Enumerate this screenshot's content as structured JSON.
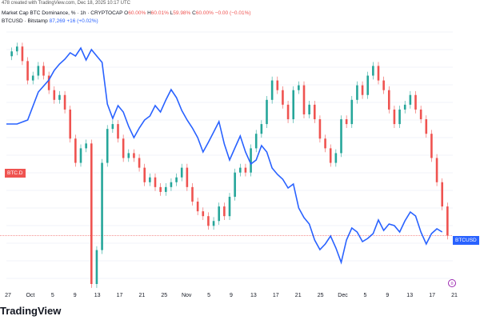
{
  "header": {
    "meta": "478 created with TradingView.com, Dec 18, 2025 10:17 UTC",
    "series1_name": "Market Cap BTC Dominance, % · 1h · CRYPTOCAP",
    "series1_o": "O",
    "series1_o_val": "60.00%",
    "series1_h": "H",
    "series1_h_val": "60.01%",
    "series1_l": "L",
    "series1_l_val": "59.98%",
    "series1_c": "C",
    "series1_c_val": "60.00%",
    "series1_change": "−0.00 (−0.01%)",
    "series2_name": "BTCUSD · Bitstamp",
    "series2_price": "87,269",
    "series2_change": "+16 (+0.02%)"
  },
  "tags": {
    "btcd": "BTC.D",
    "btcusd": "BTCUSD"
  },
  "logo": "TradingView",
  "event_icon_glyph": "¤",
  "colors": {
    "btcusd_line": "#2962ff",
    "candle_up": "#26a69a",
    "candle_down": "#ef5350",
    "price_line": "#ef5350",
    "tag_red": "#ef5350",
    "tag_blue": "#2962ff",
    "event_icon": "#9c27b0"
  },
  "chart_data": {
    "type": "line",
    "x_ticks": [
      "27",
      "Oct",
      "5",
      "9",
      "13",
      "17",
      "21",
      "25",
      "Nov",
      "5",
      "9",
      "13",
      "17",
      "21",
      "25",
      "Dec",
      "5",
      "9",
      "13",
      "17",
      "21"
    ],
    "x_range": [
      0,
      84
    ],
    "series": [
      {
        "name": "BTCUSD",
        "style": "line",
        "values": [
          [
            0,
            155
          ],
          [
            2,
            155
          ],
          [
            4,
            150
          ],
          [
            6,
            115
          ],
          [
            8,
            100
          ],
          [
            9,
            88
          ],
          [
            10,
            80
          ],
          [
            11,
            74
          ],
          [
            12,
            66
          ],
          [
            13,
            70
          ],
          [
            14,
            60
          ],
          [
            15,
            75
          ],
          [
            16,
            62
          ],
          [
            17,
            70
          ],
          [
            18,
            78
          ],
          [
            19,
            130
          ],
          [
            20,
            148
          ],
          [
            21,
            132
          ],
          [
            22,
            140
          ],
          [
            23,
            158
          ],
          [
            24,
            172
          ],
          [
            25,
            160
          ],
          [
            26,
            150
          ],
          [
            27,
            145
          ],
          [
            28,
            132
          ],
          [
            29,
            140
          ],
          [
            30,
            125
          ],
          [
            31,
            112
          ],
          [
            32,
            122
          ],
          [
            33,
            138
          ],
          [
            34,
            150
          ],
          [
            35,
            160
          ],
          [
            36,
            172
          ],
          [
            37,
            190
          ],
          [
            38,
            178
          ],
          [
            39,
            165
          ],
          [
            40,
            152
          ],
          [
            41,
            180
          ],
          [
            42,
            200
          ],
          [
            43,
            185
          ],
          [
            44,
            170
          ],
          [
            45,
            190
          ],
          [
            46,
            205
          ],
          [
            47,
            200
          ],
          [
            48,
            182
          ],
          [
            49,
            190
          ],
          [
            50,
            210
          ],
          [
            51,
            218
          ],
          [
            52,
            224
          ],
          [
            53,
            235
          ],
          [
            54,
            230
          ],
          [
            55,
            260
          ],
          [
            56,
            272
          ],
          [
            57,
            280
          ],
          [
            58,
            300
          ],
          [
            59,
            312
          ],
          [
            60,
            305
          ],
          [
            61,
            295
          ],
          [
            62,
            310
          ],
          [
            63,
            328
          ],
          [
            64,
            300
          ],
          [
            65,
            285
          ],
          [
            66,
            290
          ],
          [
            67,
            302
          ],
          [
            68,
            298
          ],
          [
            69,
            292
          ],
          [
            70,
            275
          ],
          [
            71,
            288
          ],
          [
            72,
            280
          ],
          [
            73,
            282
          ],
          [
            74,
            290
          ],
          [
            75,
            276
          ],
          [
            76,
            265
          ],
          [
            77,
            270
          ],
          [
            78,
            290
          ],
          [
            79,
            305
          ],
          [
            80,
            292
          ],
          [
            81,
            286
          ],
          [
            82,
            290
          ]
        ]
      },
      {
        "name": "BTC Dominance",
        "style": "candles",
        "values": [
          [
            0,
            63.7
          ],
          [
            1,
            63.8
          ],
          [
            2,
            63.9
          ],
          [
            3,
            63.6
          ],
          [
            4,
            63.2
          ],
          [
            5,
            63.3
          ],
          [
            6,
            63.5
          ],
          [
            7,
            63.3
          ],
          [
            8,
            63.0
          ],
          [
            9,
            62.8
          ],
          [
            10,
            62.9
          ],
          [
            11,
            62.6
          ],
          [
            12,
            62.0
          ],
          [
            13,
            61.5
          ],
          [
            14,
            61.8
          ],
          [
            15,
            61.9
          ],
          [
            16,
            59.0
          ],
          [
            17,
            59.7
          ],
          [
            18,
            61.5
          ],
          [
            19,
            62.2
          ],
          [
            20,
            62.3
          ],
          [
            21,
            62.0
          ],
          [
            22,
            61.6
          ],
          [
            23,
            61.7
          ],
          [
            24,
            61.6
          ],
          [
            25,
            61.4
          ],
          [
            26,
            61.1
          ],
          [
            27,
            61.2
          ],
          [
            28,
            61.0
          ],
          [
            29,
            60.9
          ],
          [
            30,
            61.0
          ],
          [
            31,
            61.1
          ],
          [
            32,
            61.2
          ],
          [
            33,
            61.4
          ],
          [
            34,
            61.0
          ],
          [
            35,
            60.7
          ],
          [
            36,
            60.5
          ],
          [
            37,
            60.4
          ],
          [
            38,
            60.2
          ],
          [
            39,
            60.3
          ],
          [
            40,
            60.6
          ],
          [
            41,
            60.4
          ],
          [
            42,
            60.8
          ],
          [
            43,
            61.3
          ],
          [
            44,
            61.4
          ],
          [
            45,
            61.3
          ],
          [
            46,
            61.8
          ],
          [
            47,
            62.1
          ],
          [
            48,
            62.3
          ],
          [
            49,
            62.8
          ],
          [
            50,
            63.2
          ],
          [
            51,
            63.0
          ],
          [
            52,
            62.7
          ],
          [
            53,
            62.4
          ],
          [
            54,
            63.0
          ],
          [
            55,
            63.1
          ],
          [
            56,
            62.5
          ],
          [
            57,
            62.7
          ],
          [
            58,
            62.4
          ],
          [
            59,
            62.0
          ],
          [
            60,
            61.8
          ],
          [
            61,
            61.5
          ],
          [
            62,
            61.7
          ],
          [
            63,
            62.4
          ],
          [
            64,
            62.3
          ],
          [
            65,
            62.8
          ],
          [
            66,
            63.1
          ],
          [
            67,
            62.9
          ],
          [
            68,
            63.3
          ],
          [
            69,
            63.5
          ],
          [
            70,
            63.2
          ],
          [
            71,
            63.0
          ],
          [
            72,
            62.6
          ],
          [
            73,
            62.3
          ],
          [
            74,
            62.6
          ],
          [
            75,
            62.7
          ],
          [
            76,
            62.9
          ],
          [
            77,
            62.6
          ],
          [
            78,
            62.4
          ],
          [
            79,
            62.1
          ],
          [
            80,
            61.6
          ],
          [
            81,
            61.1
          ],
          [
            82,
            60.6
          ],
          [
            83,
            60.0
          ]
        ]
      }
    ],
    "price_line_value": 60.0,
    "y_range": [
      59.0,
      64.2
    ],
    "grid": true
  }
}
